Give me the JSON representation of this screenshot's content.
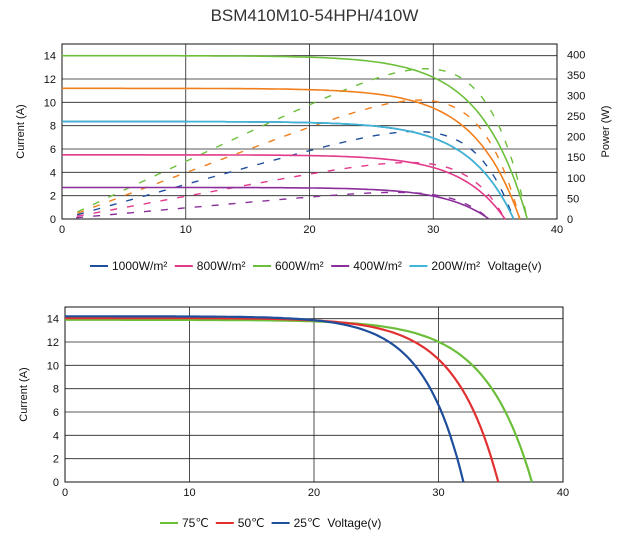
{
  "title": "BSM410M10-54HPH/410W",
  "chart_data": [
    {
      "type": "line",
      "xlabel": "",
      "ylabel": "Current (A)",
      "y2label": "Power (W)",
      "xlim": [
        0,
        40
      ],
      "ylim": [
        0,
        15
      ],
      "y2lim": [
        0,
        425
      ],
      "x_ticks": [
        0,
        10,
        20,
        30,
        40
      ],
      "y_ticks": [
        0,
        2,
        4,
        6,
        8,
        10,
        12,
        14
      ],
      "y2_ticks": [
        0,
        50,
        100,
        150,
        200,
        250,
        300,
        350,
        400
      ],
      "grid": true,
      "legend_position": "bottom",
      "legend": [
        "1000W/m²",
        "800W/m²",
        "600W/m²",
        "400W/m²",
        "200W/m²",
        "Voltage(v)"
      ],
      "series": [
        {
          "name": "600W/m²",
          "color": "#6cbf3a",
          "isc": 14.0,
          "voc": 37.6,
          "vmp": 31.8,
          "imp": 12.9,
          "pmax": 410
        },
        {
          "name": "800W/m²",
          "color": "#f07f1c",
          "isc": 11.2,
          "voc": 37.0,
          "vmp": 31.4,
          "imp": 10.3,
          "pmax": 325
        },
        {
          "name": "1000W/m²",
          "color": "#1f4e9c",
          "isc": 8.35,
          "voc": 36.5,
          "vmp": 31.0,
          "imp": 7.7,
          "pmax": 240
        },
        {
          "name": "200W/m²",
          "color": "#3fb6d8",
          "isc": 8.35,
          "voc": 36.5
        },
        {
          "name": "400W/m²",
          "color": "#e23a8a",
          "isc": 5.5,
          "voc": 35.8,
          "vmp": 30.6,
          "imp": 5.05,
          "pmax": 155
        },
        {
          "name": "",
          "color": "#8a2f9a",
          "isc": 2.7,
          "voc": 34.5,
          "vmp": 29.8,
          "imp": 2.45,
          "pmax": 73
        }
      ]
    },
    {
      "type": "line",
      "xlabel": "",
      "ylabel": "Current (A)",
      "xlim": [
        0,
        40
      ],
      "ylim": [
        0,
        15
      ],
      "x_ticks": [
        0,
        10,
        20,
        30,
        40
      ],
      "y_ticks": [
        0,
        2,
        4,
        6,
        8,
        10,
        12,
        14
      ],
      "grid": true,
      "legend_position": "bottom",
      "legend": [
        "75℃",
        "50℃",
        "25℃",
        "Voltage(v)"
      ],
      "series": [
        {
          "name": "75℃",
          "color": "#6cbf3a",
          "isc": 13.9,
          "voc": 37.5
        },
        {
          "name": "50℃",
          "color": "#e23030",
          "isc": 14.05,
          "voc": 34.8
        },
        {
          "name": "25℃",
          "color": "#1f4e9c",
          "isc": 14.2,
          "voc": 32.0
        }
      ]
    }
  ]
}
